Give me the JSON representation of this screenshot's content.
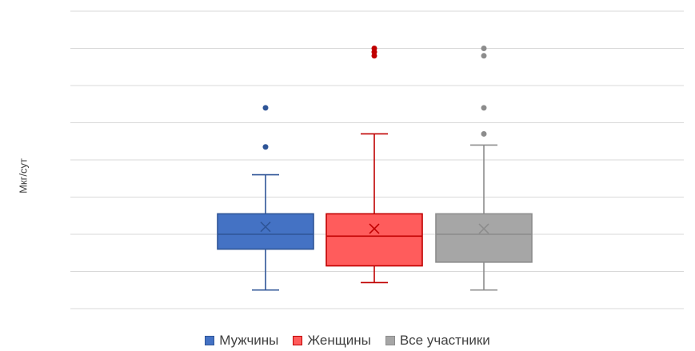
{
  "chart_data": {
    "type": "box",
    "title": "",
    "xlabel": "",
    "ylabel": "Мкг/сут",
    "ylim": [
      0,
      8
    ],
    "gridlines": [
      0,
      1,
      2,
      3,
      4,
      5,
      6,
      7,
      8
    ],
    "grid": true,
    "legend_position": "bottom",
    "series": [
      {
        "name": "Мужчины",
        "color": "#4472c4",
        "fill": "#4472c4",
        "outline": "#2f5597",
        "min": 0.5,
        "q1": 1.6,
        "median": 2.0,
        "q3": 2.55,
        "max": 3.6,
        "mean": 2.2,
        "outliers": [
          4.35,
          5.4
        ]
      },
      {
        "name": "Женщины",
        "color": "#ff5050",
        "fill": "#ff5c5c",
        "outline": "#c00000",
        "min": 0.7,
        "q1": 1.15,
        "median": 1.95,
        "q3": 2.55,
        "max": 4.7,
        "mean": 2.15,
        "outliers": [
          6.8,
          6.9,
          7.0
        ]
      },
      {
        "name": "Все участники",
        "color": "#a6a6a6",
        "fill": "#a6a6a6",
        "outline": "#8c8c8c",
        "min": 0.5,
        "q1": 1.25,
        "median": 2.0,
        "q3": 2.55,
        "max": 4.4,
        "mean": 2.15,
        "outliers": [
          4.7,
          5.4,
          6.8,
          7.0
        ]
      }
    ]
  }
}
